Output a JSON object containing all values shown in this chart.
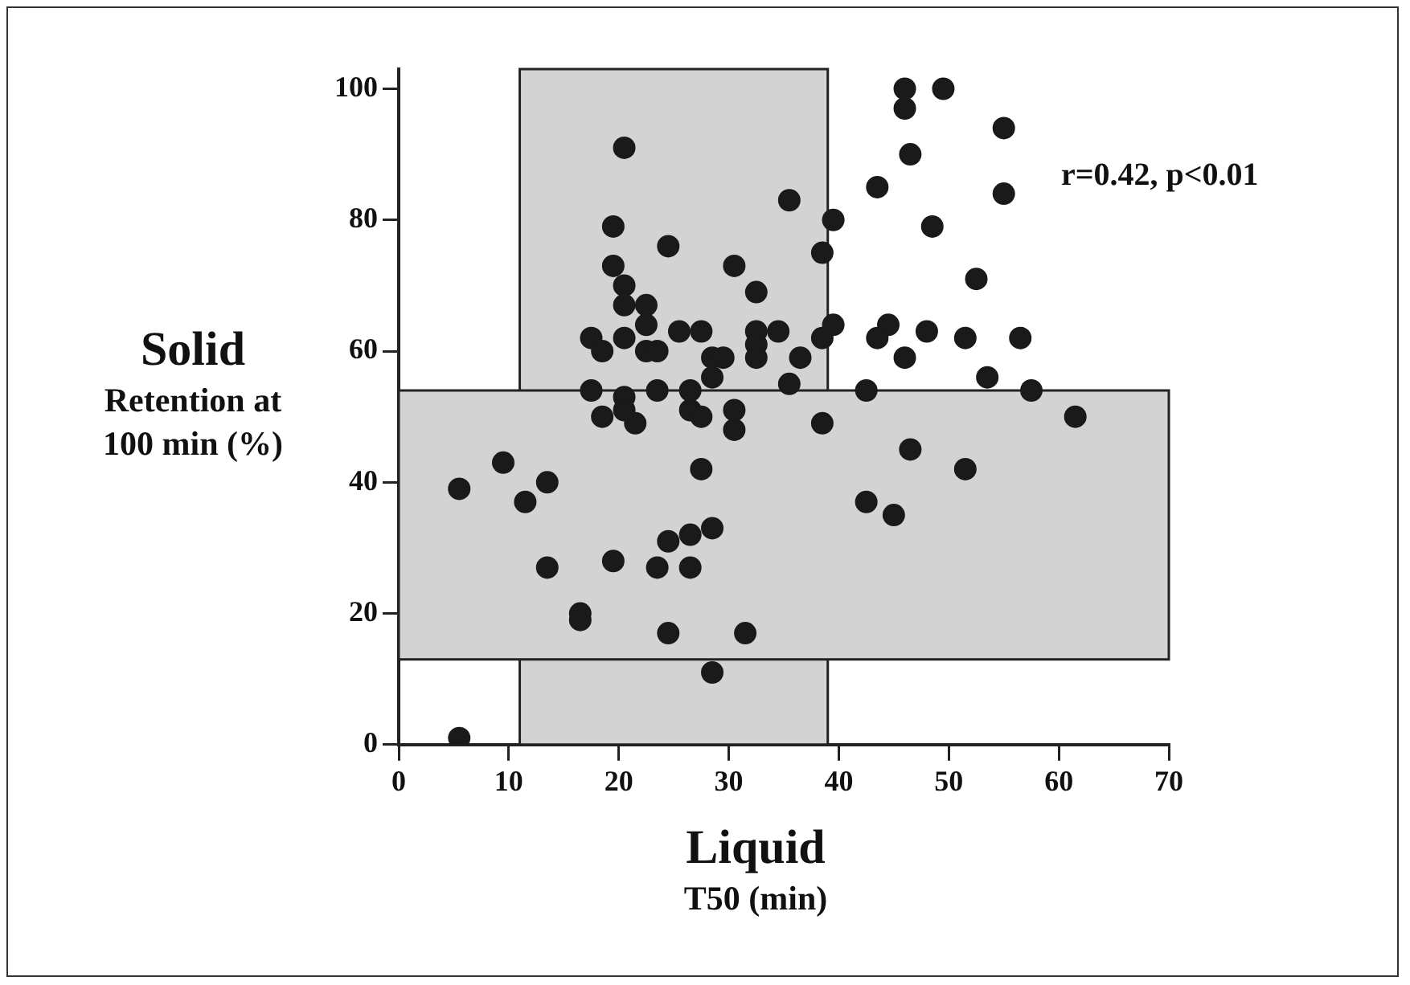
{
  "chart_data": {
    "type": "scatter",
    "xlabel": "Liquid\nT50 (min)",
    "ylabel": "Solid\nRetention at\n100 min (%)",
    "annotations": [
      "r=0.42, p<0.01"
    ],
    "x": [
      20.5,
      35.5,
      19.5,
      24.5,
      19.5,
      30.5,
      20.5,
      32.5,
      20.5,
      22.5,
      22.5,
      20.5,
      17.5,
      18.5,
      22.5,
      23.5,
      25.5,
      27.5,
      32.5,
      32.5,
      32.5,
      34.5,
      36.5,
      28.5,
      29.5,
      28.5,
      17.5,
      20.5,
      23.5,
      26.5,
      35.5,
      18.5,
      20.5,
      26.5,
      27.5,
      30.5,
      21.5,
      30.5,
      9.5,
      5.5,
      13.5,
      11.5,
      27.5,
      28.5,
      26.5,
      24.5,
      13.5,
      19.5,
      23.5,
      26.5,
      16.5,
      16.5,
      24.5,
      31.5,
      28.5,
      5.5,
      46,
      46,
      49.5,
      55,
      46.5,
      43.5,
      55,
      48.5,
      39.5,
      38.5,
      52.5,
      39.5,
      38.5,
      44.5,
      43.5,
      48,
      51.5,
      56.5,
      46,
      53.5,
      42.5,
      57.5,
      61.5,
      38.5,
      46.5,
      51.5,
      42.5,
      45
    ],
    "values": [
      91,
      83,
      79,
      76,
      73,
      73,
      70,
      69,
      67,
      67,
      64,
      62,
      62,
      60,
      60,
      60,
      63,
      63,
      63,
      61,
      59,
      63,
      59,
      59,
      59,
      56,
      54,
      53,
      54,
      54,
      55,
      50,
      51,
      51,
      50,
      51,
      49,
      48,
      43,
      39,
      40,
      37,
      42,
      33,
      32,
      31,
      27,
      28,
      27,
      27,
      20,
      19,
      17,
      17,
      11,
      1,
      100,
      97,
      100,
      94,
      90,
      85,
      84,
      79,
      80,
      75,
      71,
      64,
      62,
      64,
      62,
      63,
      62,
      62,
      59,
      56,
      54,
      54,
      50,
      49,
      45,
      42,
      37,
      35
    ],
    "color": "#1a1a1a",
    "marker": "circle",
    "xlim": [
      0,
      70
    ],
    "ylim": [
      0,
      103
    ],
    "xticks": [
      0,
      10,
      20,
      30,
      40,
      50,
      60,
      70
    ],
    "yticks": [
      0,
      20,
      40,
      60,
      80,
      100
    ],
    "grid": false,
    "legend": false,
    "bands": [
      {
        "axis": "x",
        "from": 11,
        "to": 39,
        "color": "#d3d3d3"
      },
      {
        "axis": "y",
        "from": 13,
        "to": 54,
        "color": "#d3d3d3"
      }
    ]
  }
}
